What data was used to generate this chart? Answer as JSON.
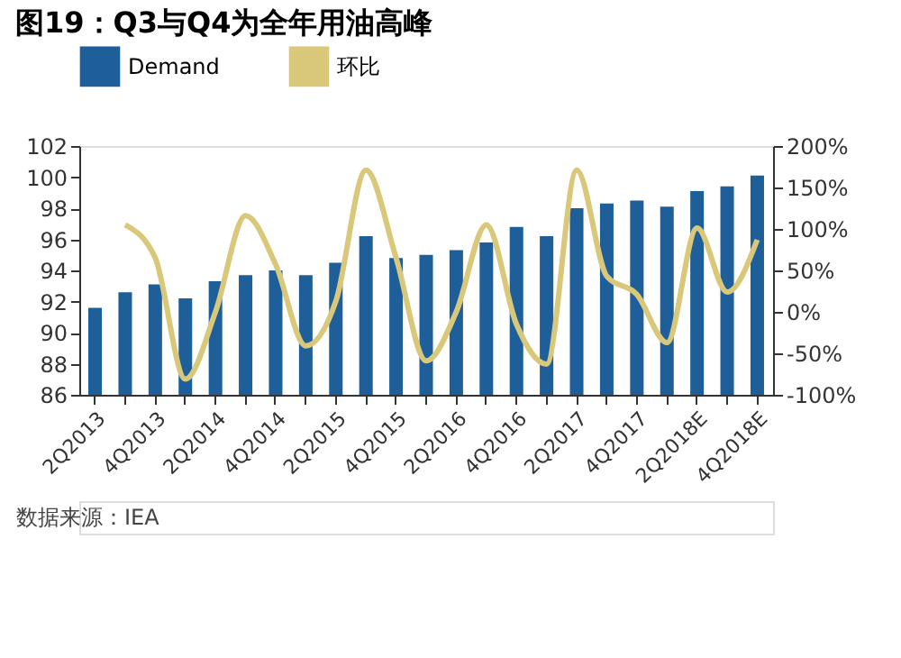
{
  "chart_data": {
    "type": "bar",
    "title": "图19：Q3与Q4为全年用油高峰",
    "categories": [
      "2Q2013",
      null,
      "4Q2013",
      null,
      "2Q2014",
      null,
      "4Q2014",
      null,
      "2Q2015",
      null,
      "4Q2015",
      null,
      "2Q2016",
      null,
      "4Q2016",
      null,
      "2Q2017",
      null,
      "4Q2017",
      null,
      "2Q2018E",
      null,
      "4Q2018E"
    ],
    "series": [
      {
        "name": "Demand",
        "color": "#1f5f99",
        "values": [
          91.6,
          92.6,
          93.1,
          92.2,
          93.3,
          93.7,
          94.0,
          93.7,
          94.5,
          96.2,
          94.8,
          95.0,
          95.3,
          95.8,
          96.8,
          96.2,
          98.0,
          98.3,
          98.5,
          98.1,
          99.1,
          99.4,
          100.1
        ]
      },
      {
        "name": "环比",
        "type": "line",
        "axis": "y2",
        "color": "#d9c77a",
        "values": [
          null,
          105,
          65,
          -81,
          0,
          116,
          57,
          -41,
          13,
          171,
          65,
          -59,
          0,
          105,
          -15,
          -63,
          171,
          43,
          21,
          -37,
          101,
          24,
          87
        ]
      }
    ],
    "ylim": [
      86,
      102
    ],
    "yticks": [
      86,
      88,
      90,
      92,
      94,
      96,
      98,
      100,
      102
    ],
    "y2lim": [
      -100,
      200
    ],
    "y2ticks": [
      {
        "value": -100,
        "label": "-100%"
      },
      {
        "value": -50,
        "label": "-50%"
      },
      {
        "value": 0,
        "label": "0%"
      },
      {
        "value": 50,
        "label": "50%"
      },
      {
        "value": 100,
        "label": "100%"
      },
      {
        "value": 150,
        "label": "150%"
      },
      {
        "value": 200,
        "label": "200%"
      }
    ],
    "grid": false,
    "legend": "top",
    "line_style": "solid",
    "annotations": [
      "数据来源：IEA"
    ]
  }
}
